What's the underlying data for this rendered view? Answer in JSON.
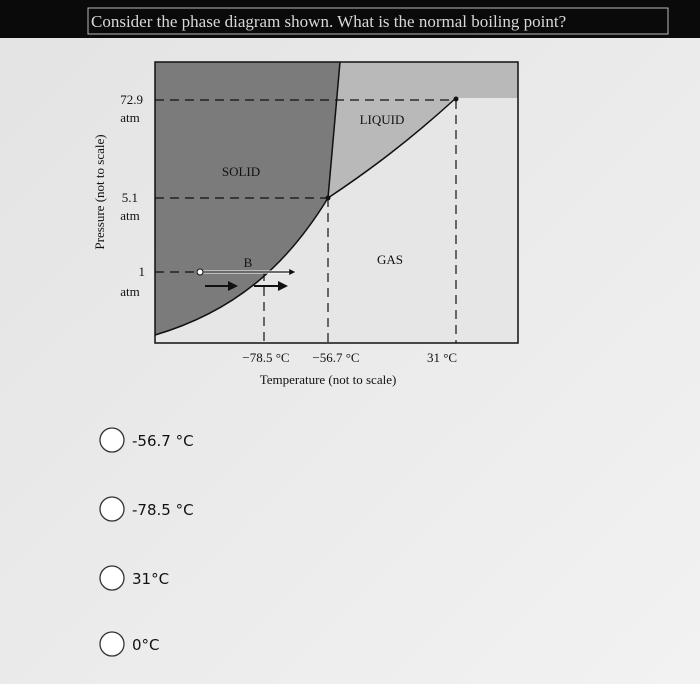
{
  "header": {
    "question": "Consider the phase diagram shown. What is the normal boiling point?"
  },
  "diagram": {
    "y_axis_label": "Pressure (not to scale)",
    "x_axis_label": "Temperature (not to scale)",
    "pressure_labels": [
      {
        "value": "72.9",
        "unit": "atm"
      },
      {
        "value": "5.1",
        "unit": "atm"
      },
      {
        "value": "1",
        "unit": "atm"
      }
    ],
    "temperature_labels": [
      "−78.5 °C",
      "−56.7 °C",
      "31 °C"
    ],
    "regions": [
      "SOLID",
      "LIQUID",
      "GAS"
    ],
    "point_label": "B"
  },
  "options": [
    "-56.7 °C",
    "-78.5 °C",
    "31°C",
    "0°C"
  ]
}
